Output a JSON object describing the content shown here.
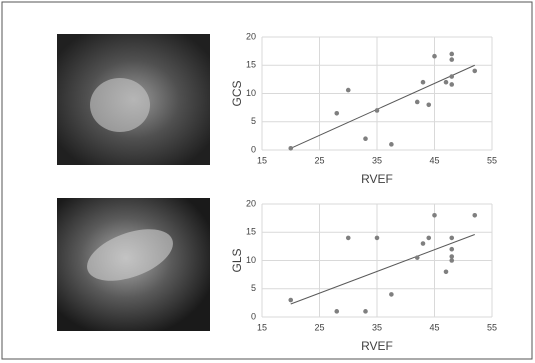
{
  "chart_data": [
    {
      "type": "scatter",
      "x_label": "RVEF",
      "y_label": "GCS",
      "x": [
        20,
        28,
        30,
        33,
        35,
        37.5,
        42,
        43,
        44,
        45,
        47,
        48,
        48,
        48,
        48,
        52
      ],
      "values": [
        0.3,
        6.5,
        10.6,
        2,
        7,
        1,
        8.5,
        12,
        8,
        16.6,
        12,
        17,
        16,
        13,
        11.6,
        14
      ],
      "color": "#7f7f7f",
      "trendline": {
        "x": [
          20,
          52
        ],
        "y": [
          0.3,
          15
        ],
        "color": "#595959"
      },
      "xlim": [
        15,
        55
      ],
      "xticks": [
        15,
        25,
        35,
        45,
        55
      ],
      "ylim": [
        0,
        20
      ],
      "yticks": [
        0,
        5,
        10,
        15,
        20
      ],
      "grid": true
    },
    {
      "type": "scatter",
      "x_label": "RVEF",
      "y_label": "GLS",
      "x": [
        20,
        28,
        30,
        33,
        35,
        37.5,
        42,
        43,
        44,
        45,
        47,
        48,
        48,
        48,
        48,
        52
      ],
      "values": [
        3,
        1,
        14,
        1,
        14,
        4,
        10.5,
        13,
        14,
        18,
        8,
        14,
        12,
        10.7,
        10,
        18
      ],
      "color": "#7f7f7f",
      "trendline": {
        "x": [
          20,
          52
        ],
        "y": [
          2.3,
          14.6
        ],
        "color": "#595959"
      },
      "xlim": [
        15,
        55
      ],
      "xticks": [
        15,
        25,
        35,
        45,
        55
      ],
      "ylim": [
        0,
        20
      ],
      "yticks": [
        0,
        5,
        10,
        15,
        20
      ],
      "grid": true
    }
  ]
}
